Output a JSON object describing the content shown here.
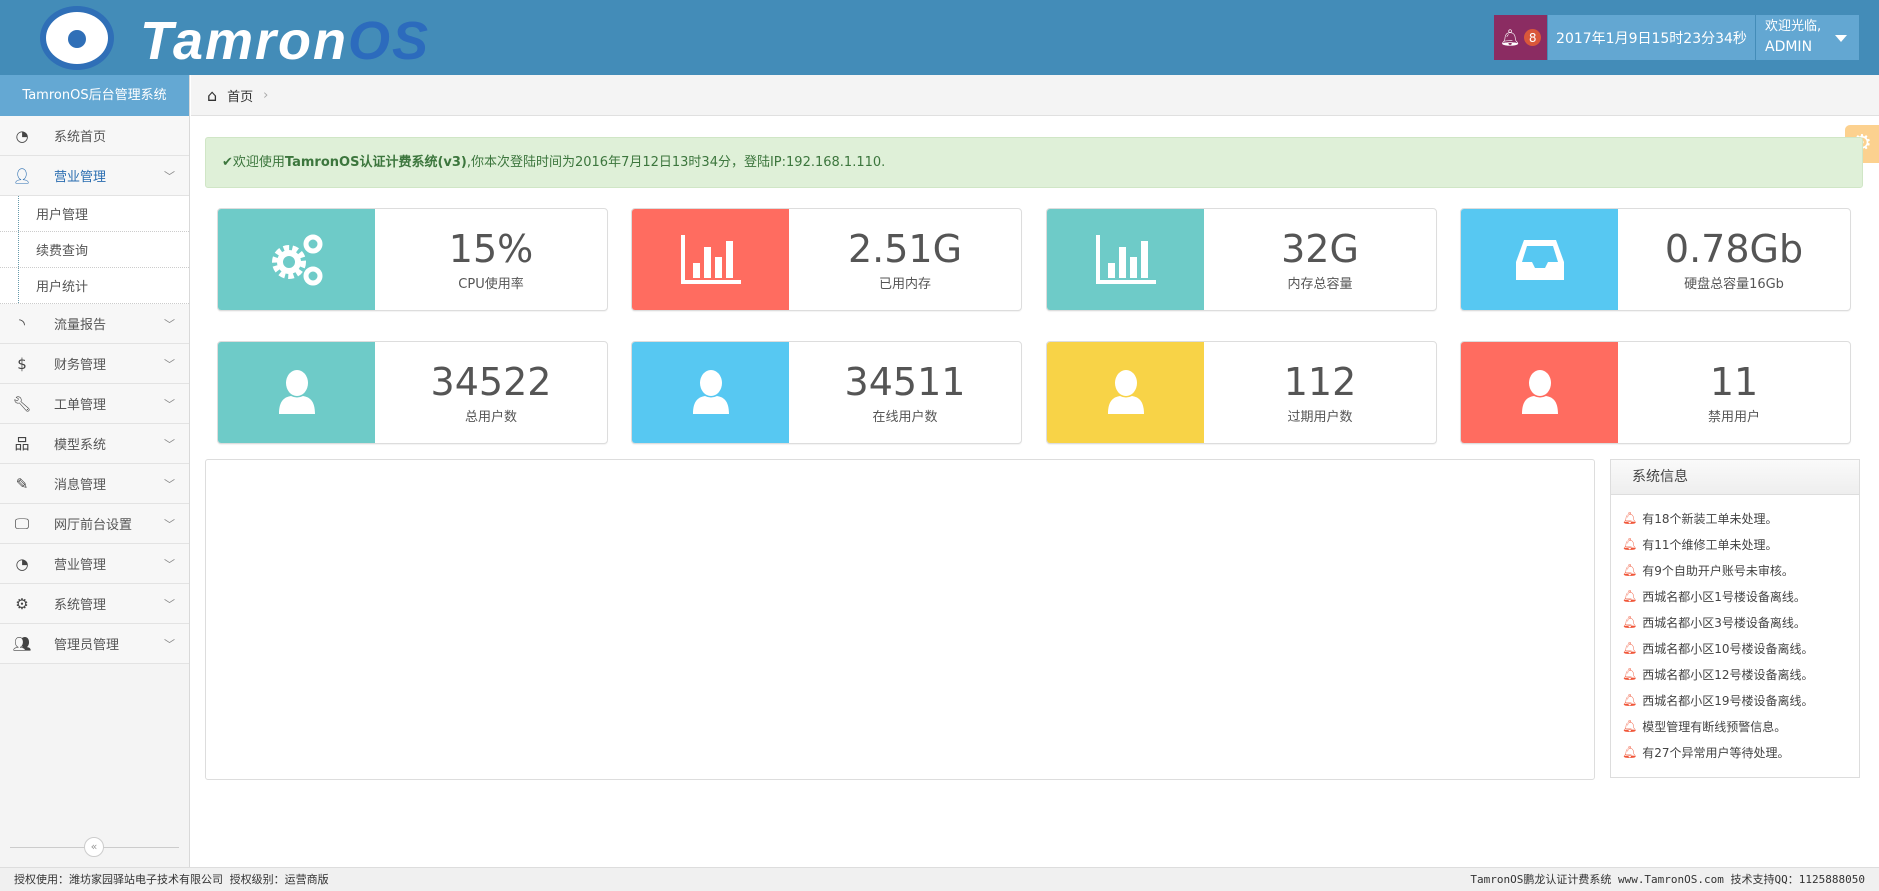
{
  "header": {
    "logo_main": "Tamron",
    "logo_accent": "OS",
    "notification_count": "8",
    "datetime": "2017年1月9日15时23分34秒",
    "welcome": "欢迎光临,",
    "username": "ADMIN"
  },
  "sidebar": {
    "title": "TamronOS后台管理系统",
    "items": [
      {
        "label": "系统首页",
        "icon": "dashboard-icon"
      },
      {
        "label": "营业管理",
        "icon": "user-icon",
        "expanded": true,
        "children": [
          "用户管理",
          "续费查询",
          "用户统计"
        ]
      },
      {
        "label": "流量报告",
        "icon": "rss-icon"
      },
      {
        "label": "财务管理",
        "icon": "dollar-icon"
      },
      {
        "label": "工单管理",
        "icon": "wrench-icon"
      },
      {
        "label": "模型系统",
        "icon": "sitemap-icon"
      },
      {
        "label": "消息管理",
        "icon": "edit-icon"
      },
      {
        "label": "网厅前台设置",
        "icon": "desktop-icon"
      },
      {
        "label": "营业管理",
        "icon": "dashboard-icon"
      },
      {
        "label": "系统管理",
        "icon": "cogs-icon"
      },
      {
        "label": "管理员管理",
        "icon": "users-icon"
      }
    ]
  },
  "breadcrumb": {
    "home": "首页"
  },
  "alert": {
    "prefix": "欢迎使用",
    "bold": "TamronOS认证计费系统(v3)",
    "rest": ",你本次登陆时间为2016年7月12日13时34分，登陆IP:192.168.1.110."
  },
  "cards": [
    {
      "value": "15%",
      "label": "CPU使用率",
      "color": "#6ecbc8",
      "icon": "cogs-icon"
    },
    {
      "value": "2.51G",
      "label": "已用内存",
      "color": "#ff6c60",
      "icon": "bar-chart-icon"
    },
    {
      "value": "32G",
      "label": "内存总容量",
      "color": "#6ecbc8",
      "icon": "bar-chart-icon"
    },
    {
      "value": "0.78Gb",
      "label": "硬盘总容量16Gb",
      "color": "#57c8f2",
      "icon": "inbox-icon"
    },
    {
      "value": "34522",
      "label": "总用户数",
      "color": "#6ecbc8",
      "icon": "user-icon"
    },
    {
      "value": "34511",
      "label": "在线用户数",
      "color": "#57c8f2",
      "icon": "user-icon"
    },
    {
      "value": "112",
      "label": "过期用户数",
      "color": "#f8d347",
      "icon": "user-icon"
    },
    {
      "value": "11",
      "label": "禁用用户",
      "color": "#ff6c60",
      "icon": "user-icon"
    }
  ],
  "system_info": {
    "title": "系统信息",
    "items": [
      "有18个新装工单未处理。",
      "有11个维修工单未处理。",
      "有9个自助开户账号未审核。",
      "西城名都小区1号楼设备离线。",
      "西城名都小区3号楼设备离线。",
      "西城名都小区10号楼设备离线。",
      "西城名都小区12号楼设备离线。",
      "西城名都小区19号楼设备离线。",
      "模型管理有断线预警信息。",
      "有27个异常用户等待处理。"
    ]
  },
  "footer": {
    "left": "授权使用：潍坊家园驿站电子技术有限公司 授权级别：运营商版",
    "right": "TamronOS鹏龙认证计费系统 www.TamronOS.com 技术支持QQ：1125888050"
  }
}
